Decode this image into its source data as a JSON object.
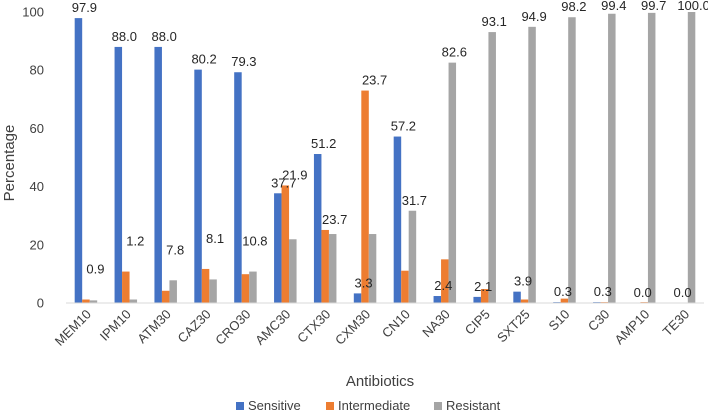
{
  "chart_data": {
    "type": "bar",
    "title": "",
    "xlabel": "Antibiotics",
    "ylabel": "Percentage",
    "ylim": [
      0,
      100
    ],
    "yticks": [
      0,
      20,
      40,
      60,
      80,
      100
    ],
    "categories": [
      "MEM10",
      "IPM10",
      "ATM30",
      "CAZ30",
      "CRO30",
      "AMC30",
      "CTX30",
      "CXM30",
      "CN10",
      "NA30",
      "CIP5",
      "SXT25",
      "S10",
      "C30",
      "AMP10",
      "TE30"
    ],
    "series": [
      {
        "name": "Sensitive",
        "color": "#4472C4",
        "values": [
          97.9,
          88.0,
          88.0,
          80.2,
          79.3,
          37.7,
          51.2,
          3.3,
          57.2,
          2.4,
          2.1,
          3.9,
          0.3,
          0.3,
          0.0,
          0.0
        ]
      },
      {
        "name": "Intermediate",
        "color": "#ED7D31",
        "values": [
          1.2,
          10.8,
          4.2,
          11.7,
          9.9,
          40.4,
          25.1,
          73.0,
          11.1,
          15.0,
          4.8,
          1.2,
          1.5,
          0.3,
          0.3,
          0.0
        ]
      },
      {
        "name": "Resistant",
        "color": "#A5A5A5",
        "values": [
          0.9,
          1.2,
          7.8,
          8.1,
          10.8,
          21.9,
          23.7,
          23.7,
          31.7,
          82.6,
          93.1,
          94.9,
          98.2,
          99.4,
          99.7,
          100.0
        ]
      }
    ],
    "data_labels": [
      {
        "category": "MEM10",
        "series": "Sensitive",
        "text": "97.9"
      },
      {
        "category": "MEM10",
        "series": "Resistant",
        "text": "0.9"
      },
      {
        "category": "IPM10",
        "series": "Sensitive",
        "text": "88.0"
      },
      {
        "category": "IPM10",
        "series": "Resistant",
        "text": "1.2"
      },
      {
        "category": "ATM30",
        "series": "Sensitive",
        "text": "88.0"
      },
      {
        "category": "ATM30",
        "series": "Resistant",
        "text": "7.8"
      },
      {
        "category": "CAZ30",
        "series": "Sensitive",
        "text": "80.2"
      },
      {
        "category": "CAZ30",
        "series": "Resistant",
        "text": "8.1"
      },
      {
        "category": "CRO30",
        "series": "Sensitive",
        "text": "79.3"
      },
      {
        "category": "CRO30",
        "series": "Resistant",
        "text": "10.8"
      },
      {
        "category": "AMC30",
        "series": "Sensitive",
        "text": "37.7"
      },
      {
        "category": "AMC30",
        "series": "Resistant",
        "text": "21.9"
      },
      {
        "category": "CTX30",
        "series": "Sensitive",
        "text": "51.2"
      },
      {
        "category": "CTX30",
        "series": "Resistant",
        "text": "23.7"
      },
      {
        "category": "CXM30",
        "series": "Sensitive",
        "text": "3.3"
      },
      {
        "category": "CXM30",
        "series": "Resistant",
        "text": "23.7"
      },
      {
        "category": "CN10",
        "series": "Sensitive",
        "text": "57.2"
      },
      {
        "category": "CN10",
        "series": "Resistant",
        "text": "31.7"
      },
      {
        "category": "NA30",
        "series": "Sensitive",
        "text": "2.4"
      },
      {
        "category": "NA30",
        "series": "Resistant",
        "text": "82.6"
      },
      {
        "category": "CIP5",
        "series": "Sensitive",
        "text": "2.1"
      },
      {
        "category": "CIP5",
        "series": "Resistant",
        "text": "93.1"
      },
      {
        "category": "SXT25",
        "series": "Sensitive",
        "text": "3.9"
      },
      {
        "category": "SXT25",
        "series": "Resistant",
        "text": "94.9"
      },
      {
        "category": "S10",
        "series": "Sensitive",
        "text": "0.3"
      },
      {
        "category": "S10",
        "series": "Resistant",
        "text": "98.2"
      },
      {
        "category": "C30",
        "series": "Sensitive",
        "text": "0.3"
      },
      {
        "category": "C30",
        "series": "Resistant",
        "text": "99.4"
      },
      {
        "category": "AMP10",
        "series": "Sensitive",
        "text": "0.0"
      },
      {
        "category": "AMP10",
        "series": "Resistant",
        "text": "99.7"
      },
      {
        "category": "TE30",
        "series": "Sensitive",
        "text": "0.0"
      },
      {
        "category": "TE30",
        "series": "Resistant",
        "text": "100.0"
      }
    ],
    "legend": {
      "position": "bottom",
      "entries": [
        "Sensitive",
        "Intermediate",
        "Resistant"
      ]
    },
    "grid": false
  }
}
